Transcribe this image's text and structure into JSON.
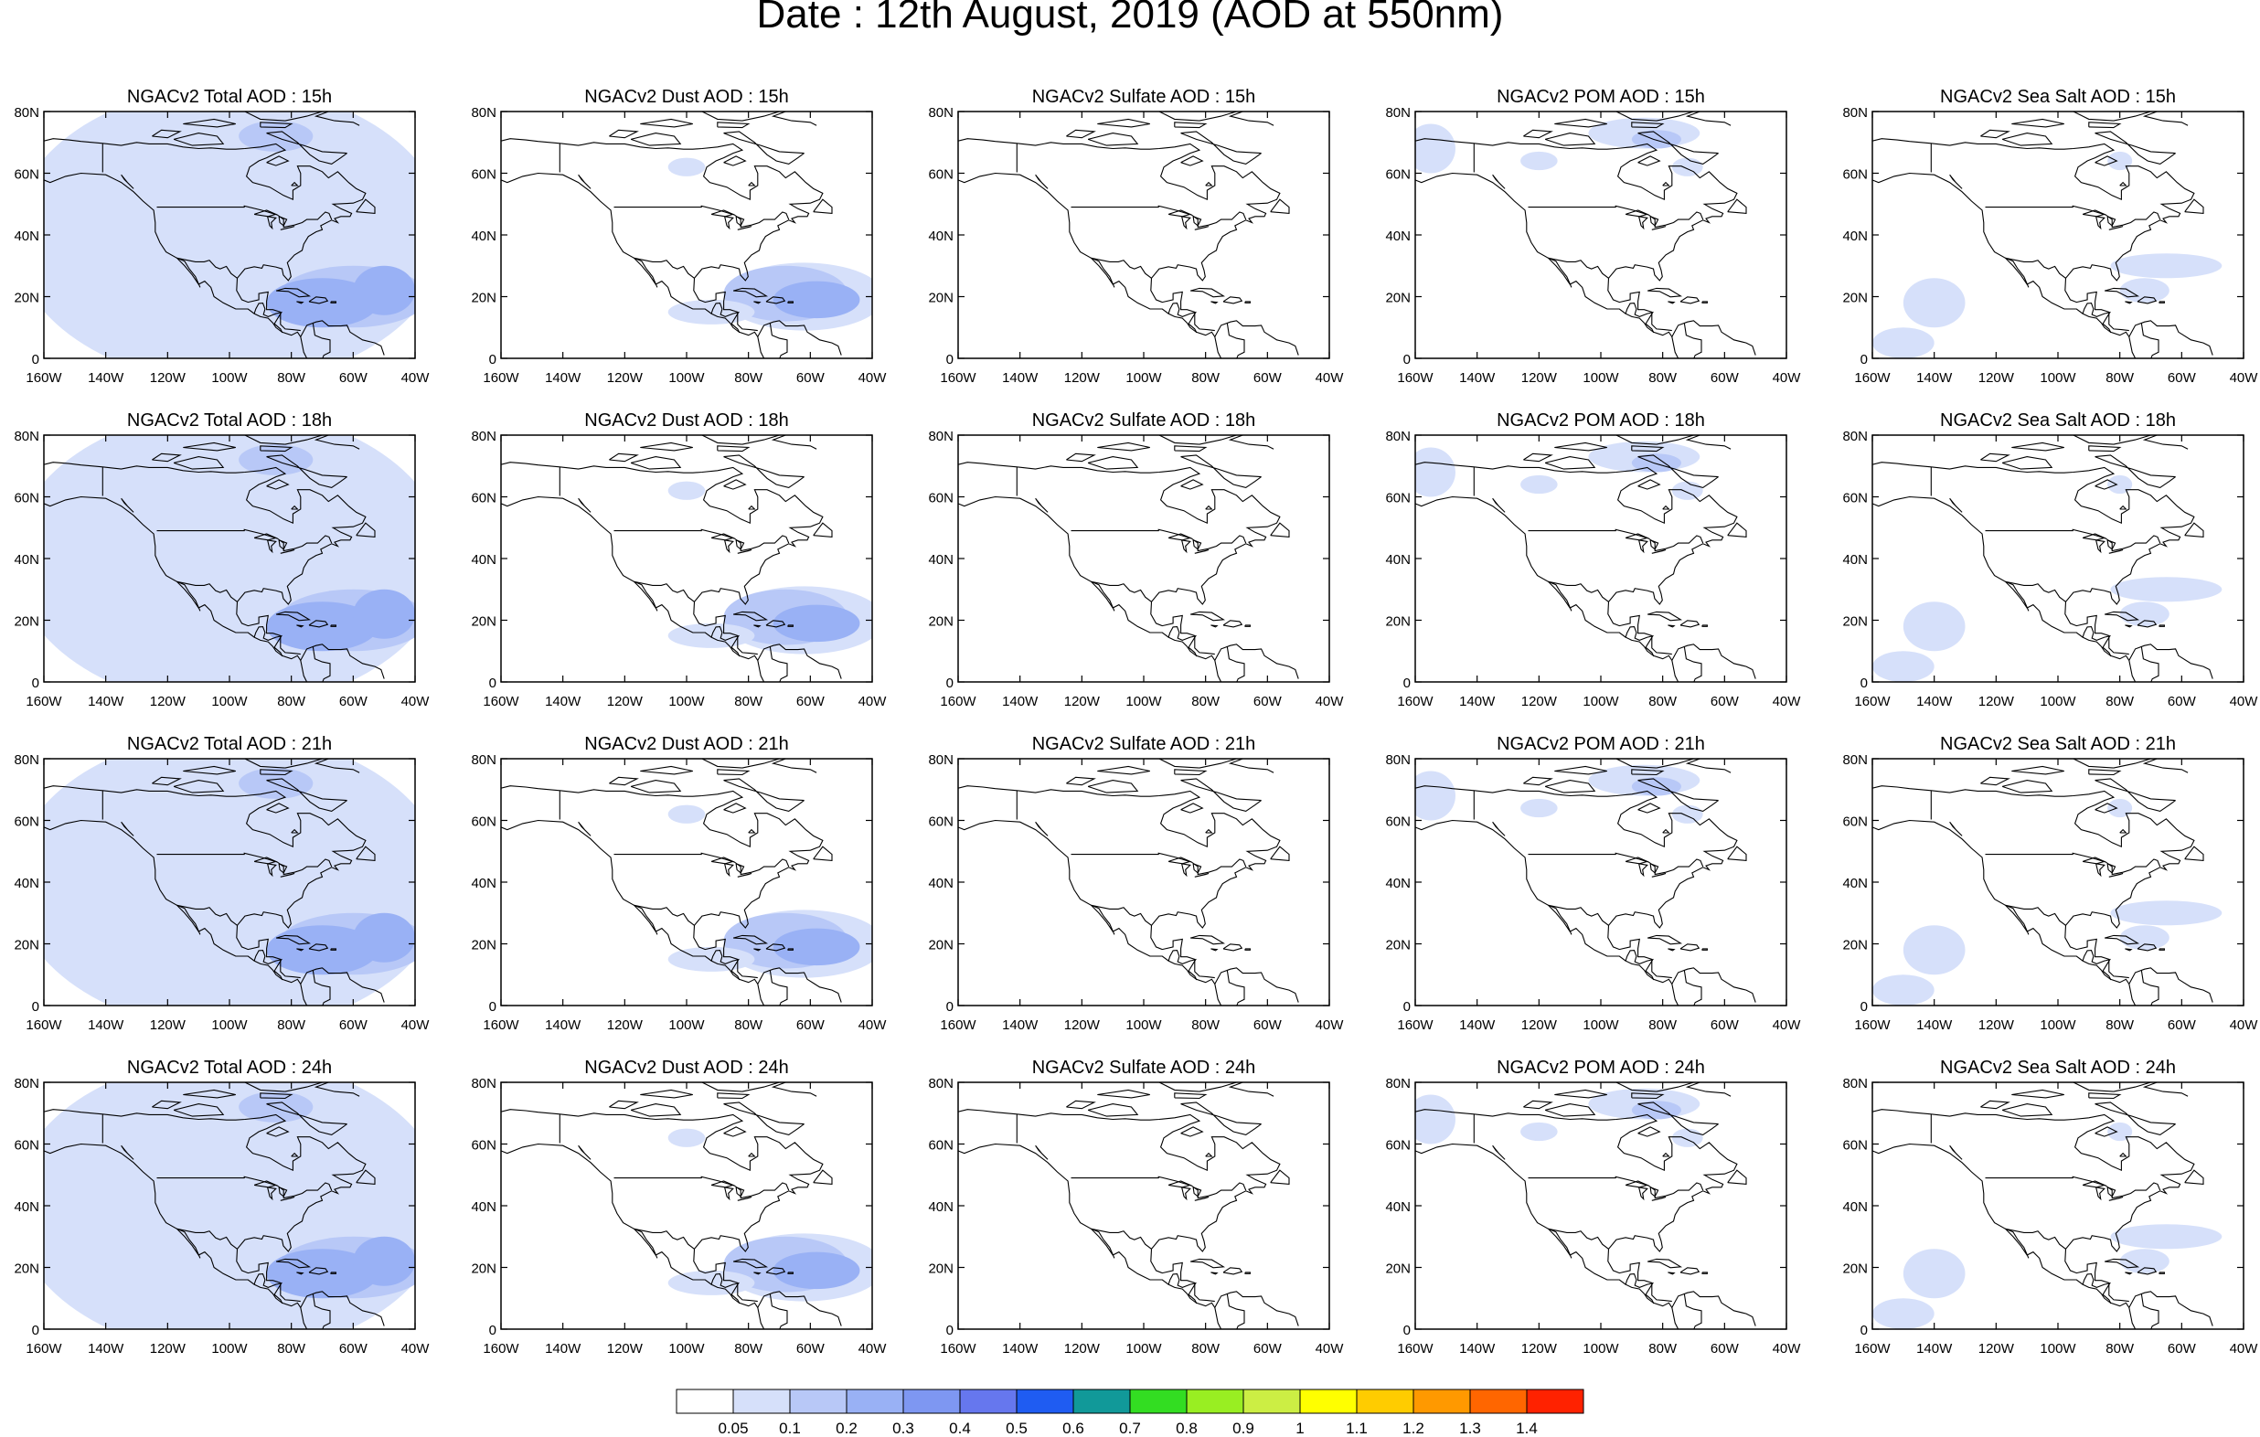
{
  "title": "Date : 12th August, 2019 (AOD at 550nm)",
  "rows": [
    {
      "hour": "15h",
      "panels": [
        "NGACv2 Total AOD : 15h",
        "NGACv2 Dust AOD : 15h",
        "NGACv2 Sulfate AOD : 15h",
        "NGACv2 POM AOD : 15h",
        "NGACv2 Sea Salt AOD : 15h"
      ]
    },
    {
      "hour": "18h",
      "panels": [
        "NGACv2 Total AOD : 18h",
        "NGACv2 Dust AOD : 18h",
        "NGACv2 Sulfate AOD : 18h",
        "NGACv2 POM AOD : 18h",
        "NGACv2 Sea Salt AOD : 18h"
      ]
    },
    {
      "hour": "21h",
      "panels": [
        "NGACv2 Total AOD : 21h",
        "NGACv2 Dust AOD : 21h",
        "NGACv2 Sulfate AOD : 21h",
        "NGACv2 POM AOD : 21h",
        "NGACv2 Sea Salt AOD : 21h"
      ]
    },
    {
      "hour": "24h",
      "panels": [
        "NGACv2 Total AOD : 24h",
        "NGACv2 Dust AOD : 24h",
        "NGACv2 Sulfate AOD : 24h",
        "NGACv2 POM AOD : 24h",
        "NGACv2 Sea Salt  AOD : 24h"
      ]
    }
  ],
  "species": [
    "Total",
    "Dust",
    "Sulfate",
    "POM",
    "Sea Salt"
  ],
  "map": {
    "lon_range": [
      -160,
      -40
    ],
    "lat_range": [
      0,
      80
    ],
    "lon_ticks": [
      "160W",
      "140W",
      "120W",
      "100W",
      "80W",
      "60W",
      "40W"
    ],
    "lat_ticks": [
      "0",
      "20N",
      "40N",
      "60N",
      "80N"
    ]
  },
  "colorbar": {
    "labels": [
      "0.05",
      "0.1",
      "0.2",
      "0.3",
      "0.4",
      "0.5",
      "0.6",
      "0.7",
      "0.8",
      "0.9",
      "1",
      "1.1",
      "1.2",
      "1.3",
      "1.4"
    ],
    "colors": [
      "#ffffff",
      "#d6e0fa",
      "#b8c8f7",
      "#99b1f5",
      "#7e97f2",
      "#6677ee",
      "#1f5cf2",
      "#119999",
      "#33dd22",
      "#99ee22",
      "#ccee44",
      "#ffff00",
      "#ffcc00",
      "#ff9900",
      "#ff6600",
      "#ff2200"
    ]
  }
}
